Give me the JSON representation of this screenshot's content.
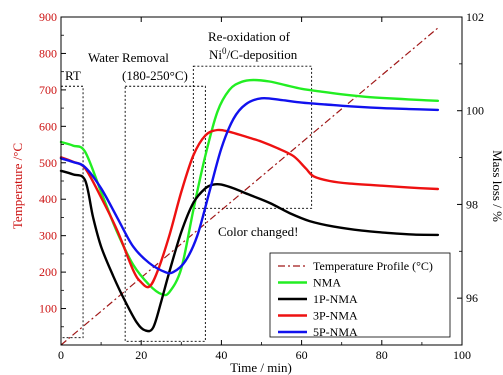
{
  "chart_data": {
    "type": "line",
    "xlabel": "Time / min)",
    "ylabel_left": "Temperature /°C",
    "ylabel_right": "Mass loss / %",
    "xlim": [
      0,
      100
    ],
    "ylim_left": [
      0,
      900
    ],
    "ylim_right": [
      95,
      102
    ],
    "x_ticks": [
      0,
      20,
      40,
      60,
      80,
      100
    ],
    "y_ticks_left": [
      100,
      200,
      300,
      400,
      500,
      600,
      700,
      800,
      900
    ],
    "y_ticks_right": [
      96,
      98,
      100,
      102
    ],
    "grid": false,
    "legend_position": "bottom-right",
    "colors": {
      "temperature": "#a01818",
      "NMA": "#22ee22",
      "1P-NMA": "#000000",
      "3P-NMA": "#ee1111",
      "5P-NMA": "#1111ee",
      "left_axis": "#cc1111",
      "frame": "#000000"
    },
    "annotations": {
      "rt": "RT",
      "water_title": "Water Removal",
      "water_range": "(180-250°C)",
      "reox_line1": "Re-oxidation of",
      "reox_line2": "Ni",
      "reox_sup": "0",
      "reox_line2_rest": "/C-deposition",
      "color_changed": "Color changed!"
    },
    "regions": [
      {
        "name": "RT",
        "x": [
          0,
          5.5
        ],
        "temperature": [
          20,
          710
        ]
      },
      {
        "name": "Water Removal",
        "x": [
          16,
          36
        ],
        "temperature": [
          10,
          710
        ]
      },
      {
        "name": "Re-oxidation",
        "x": [
          33,
          62.5
        ],
        "temperature": [
          375,
          765
        ]
      }
    ],
    "series": [
      {
        "name": "Temperature Profile (°C)",
        "axis": "left",
        "style": "dash-dot",
        "x": [
          0,
          94
        ],
        "y": [
          0,
          870
        ]
      },
      {
        "name": "NMA",
        "axis": "left",
        "x": [
          0,
          3,
          6,
          10,
          14,
          18,
          22,
          25,
          27,
          30,
          33,
          36,
          39,
          42,
          45,
          48,
          52,
          56,
          60,
          65,
          70,
          75,
          80,
          85,
          90,
          94
        ],
        "y": [
          557,
          547,
          530,
          420,
          310,
          220,
          165,
          140,
          145,
          210,
          370,
          520,
          640,
          700,
          722,
          727,
          723,
          713,
          703,
          695,
          688,
          682,
          678,
          675,
          672,
          670
        ]
      },
      {
        "name": "1P-NMA",
        "axis": "left",
        "x": [
          0,
          3,
          6,
          8,
          10,
          13,
          16,
          19,
          21,
          23,
          25,
          27,
          30,
          33,
          36,
          38,
          40,
          43,
          47,
          52,
          57,
          62,
          68,
          75,
          82,
          88,
          94
        ],
        "y": [
          478,
          468,
          452,
          350,
          270,
          190,
          120,
          60,
          40,
          48,
          120,
          200,
          310,
          390,
          430,
          440,
          440,
          430,
          412,
          390,
          362,
          340,
          325,
          314,
          307,
          303,
          302
        ]
      },
      {
        "name": "3P-NMA",
        "axis": "left",
        "x": [
          0,
          3,
          6,
          10,
          14,
          18,
          20,
          22,
          24,
          27,
          30,
          33,
          36,
          39,
          42,
          46,
          50,
          54,
          58,
          61,
          63,
          67,
          72,
          80,
          87,
          94
        ],
        "y": [
          515,
          503,
          485,
          405,
          315,
          205,
          172,
          160,
          200,
          300,
          420,
          520,
          575,
          590,
          585,
          572,
          558,
          540,
          518,
          485,
          463,
          450,
          443,
          437,
          432,
          428
        ]
      },
      {
        "name": "5P-NMA",
        "axis": "left",
        "x": [
          0,
          3,
          6,
          10,
          14,
          18,
          22,
          26,
          28,
          31,
          34,
          37,
          40,
          43,
          46,
          50,
          55,
          60,
          66,
          72,
          80,
          88,
          94
        ],
        "y": [
          512,
          502,
          488,
          430,
          350,
          270,
          225,
          200,
          200,
          230,
          300,
          420,
          540,
          620,
          660,
          677,
          672,
          665,
          660,
          655,
          650,
          647,
          645
        ]
      }
    ]
  }
}
